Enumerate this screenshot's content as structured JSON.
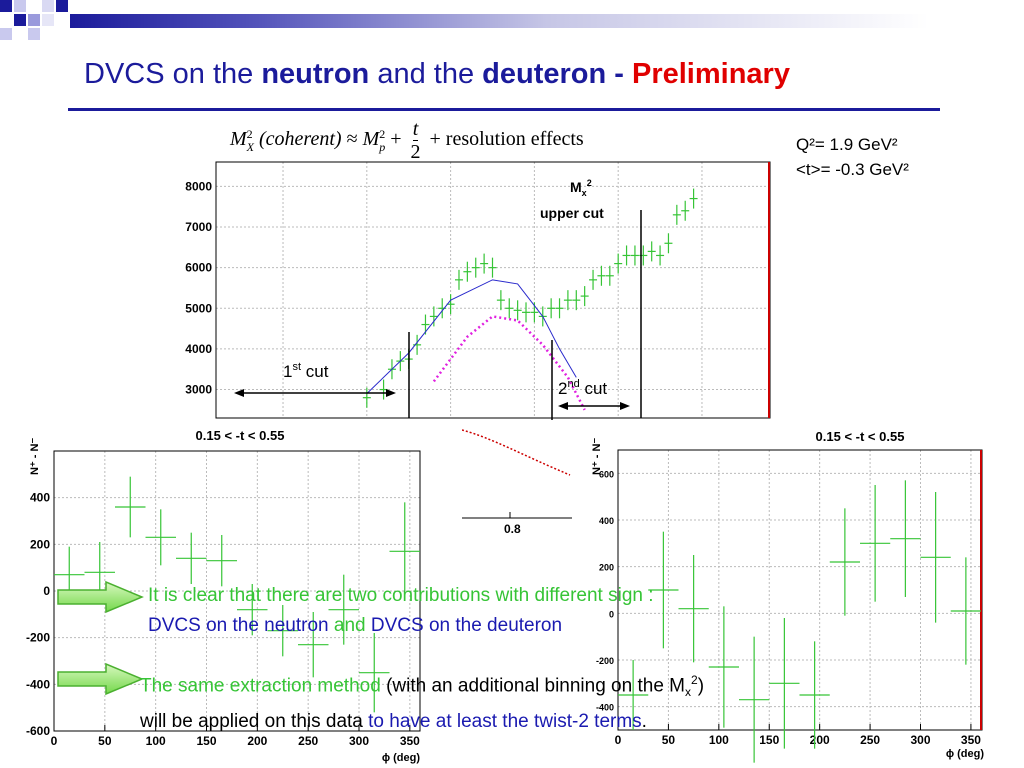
{
  "slide": {
    "title_part1": "DVCS on the ",
    "title_part2": "neutron",
    "title_part3": " and the ",
    "title_part4": "deuteron - ",
    "title_part5": "Preliminary",
    "formula_lhs": "M",
    "formula_lhs_sup": "2",
    "formula_lhs_sub": "X",
    "formula_arg": "(coherent)",
    "formula_approx": "≈",
    "formula_mp": "M",
    "formula_mp_sup": "2",
    "formula_mp_sub": "p",
    "formula_plus": "+",
    "formula_frac_num": "t",
    "formula_frac_den": "2",
    "formula_plus2": "+",
    "formula_rest": "resolution effects",
    "kinematics_q2": "Q²= 1.9 GeV²",
    "kinematics_t": "<t>= -0.3 GeV²",
    "msg1_line1": "It is clear that there are two contributions with different sign :",
    "msg1_line2a": "DVCS on the neutron",
    "msg1_line2b": " and ",
    "msg1_line2c": "DVCS on the deuteron",
    "msg2_a": "The same extraction method",
    "msg2_b": " (with an additional binning on the M",
    "msg2_sub": "x",
    "msg2_sup": "2",
    "msg2_c": ")",
    "msg2_d": "will be applied on this data ",
    "msg2_e": "to have at least the twist-2 terms",
    "msg2_f": ".",
    "colors": {
      "title": "#1b1b9b",
      "accent": "#e00000",
      "green": "#36c436",
      "blue": "#1a1ab0"
    }
  },
  "annotations": {
    "first_cut": "1",
    "first_cut_sup": "st",
    "first_cut_rest": " cut",
    "second_cut": "2",
    "second_cut_sup": "nd",
    "second_cut_rest": " cut",
    "mx2_label": "M",
    "mx2_sub": "x",
    "mx2_sup": "2",
    "upper_cut": "upper cut",
    "frag_x_tick": "0.8"
  },
  "chart_data": [
    {
      "type": "scatter",
      "name_in_image": "",
      "ylim": [
        2300,
        8600
      ],
      "xlim": [
        0.52,
        1.18
      ],
      "y_ticks": [
        "8000",
        "7000",
        "6000",
        "5000",
        "4000",
        "3000"
      ],
      "x_ticks": [
        "0.8"
      ],
      "grid": true,
      "series_points": {
        "x": [
          0.7,
          0.72,
          0.73,
          0.74,
          0.75,
          0.76,
          0.77,
          0.78,
          0.79,
          0.8,
          0.81,
          0.82,
          0.83,
          0.84,
          0.85,
          0.86,
          0.87,
          0.88,
          0.89,
          0.9,
          0.91,
          0.92,
          0.93,
          0.94,
          0.95,
          0.96,
          0.97,
          0.98,
          0.99,
          1.0,
          1.01,
          1.02,
          1.03,
          1.04,
          1.05,
          1.06,
          1.07,
          1.08,
          1.09
        ],
        "y": [
          2800,
          3000,
          3500,
          3700,
          3750,
          4100,
          4600,
          4800,
          5000,
          5100,
          5700,
          5900,
          6000,
          6100,
          6000,
          5200,
          5000,
          4950,
          4900,
          4900,
          4800,
          5000,
          5000,
          5200,
          5200,
          5300,
          5700,
          5800,
          5800,
          6100,
          6300,
          6300,
          6300,
          6400,
          6300,
          6600,
          7300,
          7400,
          7700
        ]
      },
      "series_blue_curve": {
        "x": [
          0.7,
          0.75,
          0.8,
          0.85,
          0.88,
          0.91,
          0.93,
          0.95
        ],
        "y": [
          2900,
          3900,
          5200,
          5700,
          5600,
          4800,
          4000,
          3300
        ]
      },
      "series_magenta_curve": {
        "x": [
          0.78,
          0.82,
          0.85,
          0.88,
          0.91,
          0.94,
          0.96
        ],
        "y": [
          3200,
          4300,
          4800,
          4700,
          4100,
          3300,
          2500
        ]
      }
    },
    {
      "type": "scatter",
      "title": "0.15 < -t < 0.55",
      "ylabel": "N⁺ - N⁻",
      "xlabel": "ϕ (deg)",
      "xlim": [
        0,
        360
      ],
      "ylim": [
        -600,
        600
      ],
      "x_ticks": [
        "0",
        "50",
        "100",
        "150",
        "200",
        "250",
        "300",
        "350"
      ],
      "y_ticks": [
        "400",
        "200",
        "0",
        "-200",
        "-400",
        "-600"
      ],
      "points": {
        "x": [
          15,
          45,
          75,
          105,
          135,
          165,
          195,
          225,
          255,
          285,
          315,
          345
        ],
        "y": [
          70,
          80,
          360,
          230,
          140,
          130,
          -80,
          -170,
          -230,
          -80,
          -350,
          170
        ],
        "err": [
          120,
          130,
          130,
          120,
          110,
          110,
          110,
          110,
          140,
          150,
          170,
          210
        ]
      }
    },
    {
      "type": "scatter",
      "title": "0.15 < -t < 0.55",
      "ylabel": "N⁺ - N⁻",
      "xlabel": "ϕ (deg)",
      "xlim": [
        0,
        360
      ],
      "ylim": [
        -500,
        700
      ],
      "x_ticks": [
        "0",
        "50",
        "100",
        "150",
        "200",
        "250",
        "300",
        "350"
      ],
      "y_ticks": [
        "600",
        "400",
        "200",
        "0",
        "-200",
        "-400"
      ],
      "points": {
        "x": [
          15,
          45,
          75,
          105,
          135,
          165,
          195,
          225,
          255,
          285,
          315,
          345
        ],
        "y": [
          -350,
          100,
          20,
          -230,
          -370,
          -300,
          -350,
          220,
          300,
          320,
          240,
          10
        ],
        "err": [
          150,
          250,
          230,
          260,
          270,
          280,
          230,
          230,
          250,
          250,
          280,
          230
        ]
      }
    }
  ]
}
